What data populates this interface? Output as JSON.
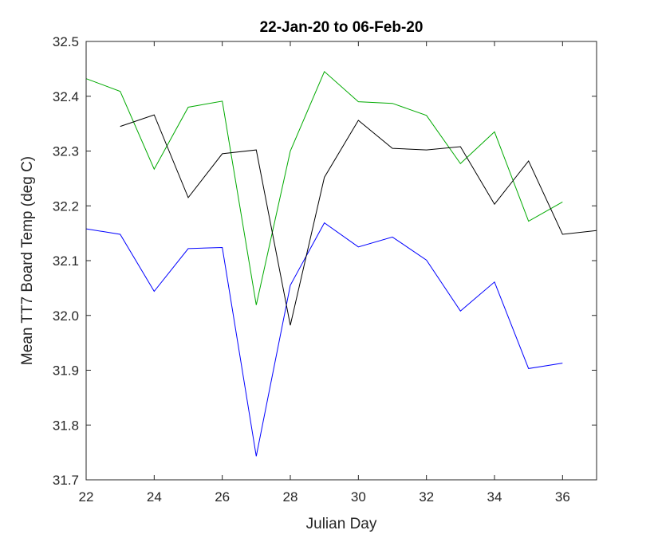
{
  "chart_data": {
    "type": "line",
    "title": "22-Jan-20 to 06-Feb-20",
    "xlabel": "Julian Day",
    "ylabel": "Mean TT7 Board Temp (deg C)",
    "xlim": [
      22,
      37
    ],
    "ylim": [
      31.7,
      32.5
    ],
    "xticks": [
      22,
      24,
      26,
      28,
      30,
      32,
      34,
      36
    ],
    "yticks": [
      31.7,
      31.8,
      31.9,
      32.0,
      32.1,
      32.2,
      32.3,
      32.4,
      32.5
    ],
    "ytick_labels": [
      "31.7",
      "31.8",
      "31.9",
      "32.0",
      "32.1",
      "32.2",
      "32.3",
      "32.4",
      "32.5"
    ],
    "grid": false,
    "series": [
      {
        "color": "#0000ff",
        "x": [
          22,
          23,
          24,
          25,
          26,
          27,
          28,
          29,
          30,
          31,
          32,
          33,
          34,
          35,
          36
        ],
        "y": [
          32.158,
          32.148,
          32.044,
          32.122,
          32.124,
          31.743,
          32.055,
          32.169,
          32.125,
          32.143,
          32.101,
          32.008,
          32.061,
          31.903,
          31.913
        ]
      },
      {
        "color": "#00aa00",
        "x": [
          22,
          23,
          24,
          25,
          26,
          27,
          28,
          29,
          30,
          31,
          32,
          33,
          34,
          35,
          36
        ],
        "y": [
          32.432,
          32.409,
          32.267,
          32.38,
          32.391,
          32.019,
          32.3,
          32.445,
          32.39,
          32.387,
          32.365,
          32.277,
          32.335,
          32.172,
          32.207
        ]
      },
      {
        "color": "#000000",
        "x": [
          23,
          24,
          25,
          26,
          27,
          28,
          29,
          30,
          31,
          32,
          33,
          34,
          35,
          36,
          37
        ],
        "y": [
          32.345,
          32.366,
          32.215,
          32.295,
          32.302,
          31.982,
          32.252,
          32.356,
          32.305,
          32.302,
          32.308,
          32.203,
          32.282,
          32.148,
          32.155
        ]
      }
    ]
  }
}
